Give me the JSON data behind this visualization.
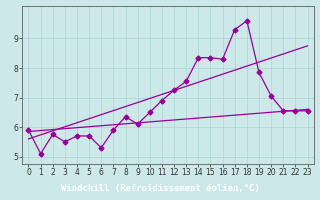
{
  "title": "",
  "xlabel": "Windchill (Refroidissement éolien,°C)",
  "bg_color": "#cce8e8",
  "line_color": "#990099",
  "xlim": [
    -0.5,
    23.5
  ],
  "ylim": [
    4.75,
    10.1
  ],
  "xticks": [
    0,
    1,
    2,
    3,
    4,
    5,
    6,
    7,
    8,
    9,
    10,
    11,
    12,
    13,
    14,
    15,
    16,
    17,
    18,
    19,
    20,
    21,
    22,
    23
  ],
  "yticks": [
    5,
    6,
    7,
    8,
    9
  ],
  "series1_x": [
    0,
    1,
    2,
    3,
    4,
    5,
    6,
    7,
    8,
    9,
    10,
    11,
    12,
    13,
    14,
    15,
    16,
    17,
    18,
    19,
    20,
    21,
    22,
    23
  ],
  "series1_y": [
    5.9,
    5.1,
    5.75,
    5.5,
    5.7,
    5.7,
    5.3,
    5.9,
    6.35,
    6.1,
    6.5,
    6.9,
    7.25,
    7.55,
    8.35,
    8.35,
    8.3,
    9.3,
    9.6,
    7.85,
    7.05,
    6.55,
    6.55,
    6.55
  ],
  "series2_x": [
    0,
    23
  ],
  "series2_y": [
    5.85,
    6.6
  ],
  "series3_x": [
    0,
    23
  ],
  "series3_y": [
    5.6,
    8.75
  ],
  "grid_color": "#aad4d4",
  "marker": "D",
  "markersize": 2.5,
  "linewidth": 0.9,
  "tick_fontsize": 5.5,
  "xlabel_fontsize": 6.5,
  "xlabel_bg": "#7b007b",
  "xlabel_color": "#ffffff"
}
